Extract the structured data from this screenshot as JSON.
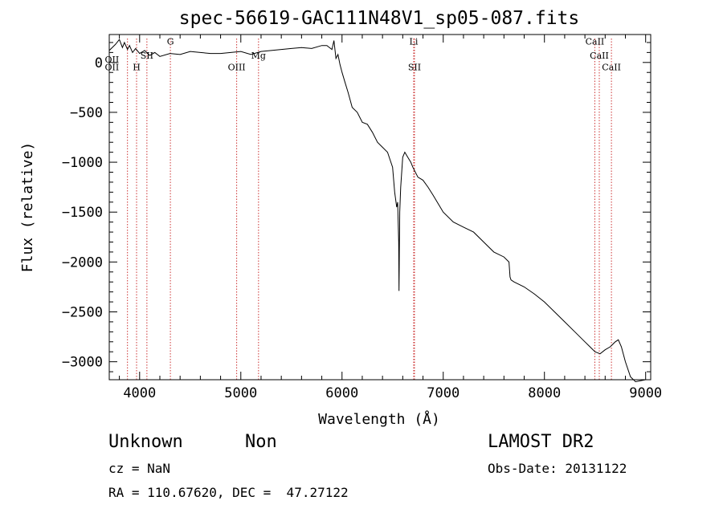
{
  "chart_data": {
    "type": "line",
    "title": "spec-56619-GAC111N48V1_sp05-087.fits",
    "xlabel": "Wavelength (Å)",
    "ylabel": "Flux (relative)",
    "xlim": [
      3700,
      9050
    ],
    "ylim": [
      -3180,
      280
    ],
    "x_ticks": [
      4000,
      5000,
      6000,
      7000,
      8000,
      9000
    ],
    "y_ticks": [
      0,
      -500,
      -1000,
      -1500,
      -2000,
      -2500,
      -3000
    ],
    "x_tick_labels": [
      "4000",
      "5000",
      "6000",
      "7000",
      "8000",
      "9000"
    ],
    "y_tick_labels": [
      "0",
      "−500",
      "−1000",
      "−1500",
      "−2000",
      "−2500",
      "−3000"
    ],
    "grid": false,
    "series": [
      {
        "x": [
          3700,
          3760,
          3800,
          3830,
          3850,
          3880,
          3900,
          3930,
          3960,
          4000,
          4050,
          4100,
          4150,
          4200,
          4300,
          4400,
          4500,
          4600,
          4700,
          4800,
          4900,
          5000,
          5100,
          5200,
          5300,
          5400,
          5500,
          5600,
          5700,
          5800,
          5850,
          5900,
          5920,
          5940,
          5960,
          5980,
          6000,
          6030,
          6060,
          6100,
          6150,
          6200,
          6250,
          6300,
          6350,
          6400,
          6450,
          6500,
          6520,
          6540,
          6550,
          6560,
          6563,
          6566,
          6570,
          6580,
          6600,
          6620,
          6650,
          6680,
          6700,
          6750,
          6800,
          6850,
          6900,
          7000,
          7100,
          7200,
          7300,
          7400,
          7500,
          7600,
          7650,
          7660,
          7670,
          7700,
          7800,
          7900,
          8000,
          8100,
          8200,
          8300,
          8400,
          8450,
          8500,
          8550,
          8600,
          8650,
          8700,
          8730,
          8760,
          8800,
          8850,
          8900,
          8950,
          9000
        ],
        "y": [
          120,
          180,
          230,
          150,
          200,
          130,
          170,
          100,
          140,
          90,
          120,
          70,
          100,
          60,
          90,
          80,
          110,
          100,
          90,
          90,
          100,
          110,
          80,
          110,
          120,
          130,
          140,
          150,
          140,
          170,
          170,
          130,
          220,
          40,
          80,
          -20,
          -100,
          -200,
          -300,
          -450,
          -500,
          -600,
          -620,
          -700,
          -800,
          -850,
          -900,
          -1050,
          -1300,
          -1450,
          -1400,
          -1800,
          -2290,
          -1900,
          -1500,
          -1250,
          -950,
          -900,
          -950,
          -1000,
          -1050,
          -1150,
          -1180,
          -1250,
          -1330,
          -1500,
          -1600,
          -1650,
          -1700,
          -1800,
          -1900,
          -1950,
          -2000,
          -2150,
          -2180,
          -2200,
          -2250,
          -2320,
          -2400,
          -2500,
          -2600,
          -2700,
          -2800,
          -2850,
          -2900,
          -2920,
          -2880,
          -2850,
          -2800,
          -2780,
          -2850,
          -3000,
          -3150,
          -3200,
          -3190,
          -3180
        ]
      }
    ],
    "spectral_lines": [
      {
        "name": "OII",
        "wl": 3727,
        "label_y": 0
      },
      {
        "name": "OII",
        "wl": 3727,
        "label_y": -80
      },
      {
        "name": "H",
        "wl": 3970,
        "label_y": -80
      },
      {
        "name": "SII",
        "wl": 4072,
        "label_y": 40
      },
      {
        "name": "G",
        "wl": 4304,
        "label_y": 180
      },
      {
        "name": "OIII",
        "wl": 4959,
        "label_y": -80
      },
      {
        "name": "Mg",
        "wl": 5175,
        "label_y": 40
      },
      {
        "name": "Li",
        "wl": 6708,
        "label_y": 180
      },
      {
        "name": "SII",
        "wl": 6716,
        "label_y": -80
      },
      {
        "name": "CaII",
        "wl": 8498,
        "label_y": 180
      },
      {
        "name": "CaII",
        "wl": 8542,
        "label_y": 40
      },
      {
        "name": "CaII",
        "wl": 8662,
        "label_y": -80
      }
    ],
    "marker_lines_wl": [
      3880,
      3970,
      4072,
      4304,
      4959,
      5175,
      6708,
      6716,
      8498,
      8542,
      8662
    ]
  },
  "footer": {
    "object_type": "Unknown",
    "object_subtype": "Non",
    "release": "LAMOST DR2",
    "cz": "cz = NaN",
    "obs_date": "Obs-Date: 20131122",
    "coords": "RA = 110.67620, DEC =  47.27122"
  },
  "colors": {
    "spectrum": "#000000",
    "marker_lines": "#cc3333"
  }
}
